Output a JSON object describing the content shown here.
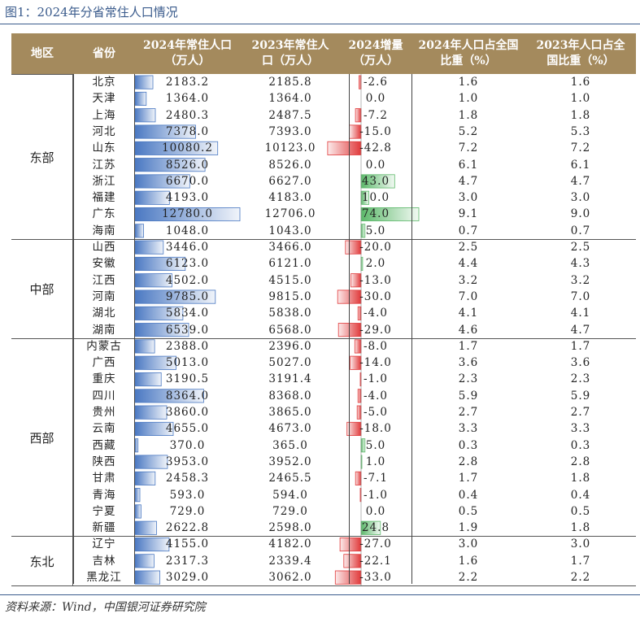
{
  "figure": {
    "title": "图1：2024年分省常住人口情况",
    "source": "资料来源：Wind，中国银河证券研究院"
  },
  "colors": {
    "header_bg": "#a48a5d",
    "bar_pop": "#4a78c2",
    "bar_neg": "#e0393a",
    "bar_pos": "#5cb86a",
    "title_blue": "#3a5b8c"
  },
  "header": {
    "region": "地区",
    "province": "省份",
    "pop2024": "2024年常住人口\n（万人）",
    "pop2023": "2023年常住人\n口（万人）",
    "change2024": "2024增量\n（万人）",
    "share2024": "2024年人口占全国\n比重（%）",
    "share2023": "2023年人口占全\n国比重（%）"
  },
  "regions": [
    {
      "name": "东部",
      "start": 0,
      "count": 10
    },
    {
      "name": "中部",
      "start": 10,
      "count": 6
    },
    {
      "name": "西部",
      "start": 16,
      "count": 12
    },
    {
      "name": "东北",
      "start": 28,
      "count": 3
    }
  ],
  "chart_data": {
    "type": "table",
    "columns": [
      "地区",
      "省份",
      "2024年常住人口（万人）",
      "2023年常住人口（万人）",
      "2024增量（万人）",
      "2024年人口占全国比重（%）",
      "2023年人口占全国比重（%）"
    ],
    "rows": [
      {
        "province": "北京",
        "pop2024": "2183.2",
        "pop2023": "2185.8",
        "change": "-2.6",
        "share2024": "1.6",
        "share2023": "1.6"
      },
      {
        "province": "天津",
        "pop2024": "1364.0",
        "pop2023": "1364.0",
        "change": "0.0",
        "share2024": "1.0",
        "share2023": "1.0"
      },
      {
        "province": "上海",
        "pop2024": "2480.3",
        "pop2023": "2487.5",
        "change": "-7.2",
        "share2024": "1.8",
        "share2023": "1.8"
      },
      {
        "province": "河北",
        "pop2024": "7378.0",
        "pop2023": "7393.0",
        "change": "-15.0",
        "share2024": "5.2",
        "share2023": "5.3"
      },
      {
        "province": "山东",
        "pop2024": "10080.2",
        "pop2023": "10123.0",
        "change": "-42.8",
        "share2024": "7.2",
        "share2023": "7.2"
      },
      {
        "province": "江苏",
        "pop2024": "8526.0",
        "pop2023": "8526.0",
        "change": "0.0",
        "share2024": "6.1",
        "share2023": "6.1"
      },
      {
        "province": "浙江",
        "pop2024": "6670.0",
        "pop2023": "6627.0",
        "change": "43.0",
        "share2024": "4.7",
        "share2023": "4.7"
      },
      {
        "province": "福建",
        "pop2024": "4193.0",
        "pop2023": "4183.0",
        "change": "10.0",
        "share2024": "3.0",
        "share2023": "3.0"
      },
      {
        "province": "广东",
        "pop2024": "12780.0",
        "pop2023": "12706.0",
        "change": "74.0",
        "share2024": "9.1",
        "share2023": "9.0"
      },
      {
        "province": "海南",
        "pop2024": "1048.0",
        "pop2023": "1043.0",
        "change": "5.0",
        "share2024": "0.7",
        "share2023": "0.7"
      },
      {
        "province": "山西",
        "pop2024": "3446.0",
        "pop2023": "3466.0",
        "change": "-20.0",
        "share2024": "2.5",
        "share2023": "2.5"
      },
      {
        "province": "安徽",
        "pop2024": "6123.0",
        "pop2023": "6121.0",
        "change": "2.0",
        "share2024": "4.4",
        "share2023": "4.3"
      },
      {
        "province": "江西",
        "pop2024": "4502.0",
        "pop2023": "4515.0",
        "change": "-13.0",
        "share2024": "3.2",
        "share2023": "3.2"
      },
      {
        "province": "河南",
        "pop2024": "9785.0",
        "pop2023": "9815.0",
        "change": "-30.0",
        "share2024": "7.0",
        "share2023": "7.0"
      },
      {
        "province": "湖北",
        "pop2024": "5834.0",
        "pop2023": "5838.0",
        "change": "-4.0",
        "share2024": "4.1",
        "share2023": "4.1"
      },
      {
        "province": "湖南",
        "pop2024": "6539.0",
        "pop2023": "6568.0",
        "change": "-29.0",
        "share2024": "4.6",
        "share2023": "4.7"
      },
      {
        "province": "内蒙古",
        "pop2024": "2388.0",
        "pop2023": "2396.0",
        "change": "-8.0",
        "share2024": "1.7",
        "share2023": "1.7"
      },
      {
        "province": "广西",
        "pop2024": "5013.0",
        "pop2023": "5027.0",
        "change": "-14.0",
        "share2024": "3.6",
        "share2023": "3.6"
      },
      {
        "province": "重庆",
        "pop2024": "3190.5",
        "pop2023": "3191.4",
        "change": "-1.0",
        "share2024": "2.3",
        "share2023": "2.3"
      },
      {
        "province": "四川",
        "pop2024": "8364.0",
        "pop2023": "8368.0",
        "change": "-4.0",
        "share2024": "5.9",
        "share2023": "5.9"
      },
      {
        "province": "贵州",
        "pop2024": "3860.0",
        "pop2023": "3865.0",
        "change": "-5.0",
        "share2024": "2.7",
        "share2023": "2.7"
      },
      {
        "province": "云南",
        "pop2024": "4655.0",
        "pop2023": "4673.0",
        "change": "-18.0",
        "share2024": "3.3",
        "share2023": "3.3"
      },
      {
        "province": "西藏",
        "pop2024": "370.0",
        "pop2023": "365.0",
        "change": "5.0",
        "share2024": "0.3",
        "share2023": "0.3"
      },
      {
        "province": "陕西",
        "pop2024": "3953.0",
        "pop2023": "3952.0",
        "change": "1.0",
        "share2024": "2.8",
        "share2023": "2.8"
      },
      {
        "province": "甘肃",
        "pop2024": "2458.3",
        "pop2023": "2465.5",
        "change": "-7.1",
        "share2024": "1.7",
        "share2023": "1.8"
      },
      {
        "province": "青海",
        "pop2024": "593.0",
        "pop2023": "594.0",
        "change": "-1.0",
        "share2024": "0.4",
        "share2023": "0.4"
      },
      {
        "province": "宁夏",
        "pop2024": "729.0",
        "pop2023": "729.0",
        "change": "0.0",
        "share2024": "0.5",
        "share2023": "0.5"
      },
      {
        "province": "新疆",
        "pop2024": "2622.8",
        "pop2023": "2598.0",
        "change": "24.8",
        "share2024": "1.9",
        "share2023": "1.8"
      },
      {
        "province": "辽宁",
        "pop2024": "4155.0",
        "pop2023": "4182.0",
        "change": "-27.0",
        "share2024": "3.0",
        "share2023": "3.0"
      },
      {
        "province": "吉林",
        "pop2024": "2317.3",
        "pop2023": "2339.4",
        "change": "-22.1",
        "share2024": "1.6",
        "share2023": "1.7"
      },
      {
        "province": "黑龙江",
        "pop2024": "3029.0",
        "pop2023": "3062.0",
        "change": "-33.0",
        "share2024": "2.2",
        "share2023": "2.2"
      }
    ]
  }
}
